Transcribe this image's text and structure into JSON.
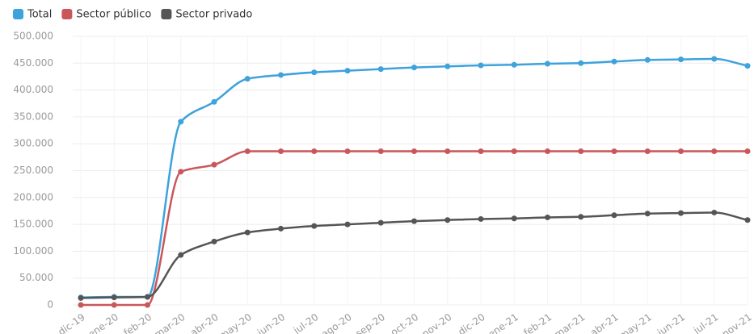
{
  "chart_data": {
    "type": "line",
    "categories": [
      "dic-19",
      "ene-20",
      "feb-20",
      "mar-20",
      "abr-20",
      "may-20",
      "jun-20",
      "jul-20",
      "ago-20",
      "sep-20",
      "oct-20",
      "nov-20",
      "dic-20",
      "ene-21",
      "feb-21",
      "mar-21",
      "abr-21",
      "may-21",
      "jun-21",
      "jul-21",
      "nov-21"
    ],
    "series": [
      {
        "name": "Total",
        "color": "#3ea2dc",
        "values": [
          14000,
          15000,
          15000,
          341000,
          378000,
          421000,
          428000,
          433000,
          436000,
          439000,
          442000,
          444000,
          446000,
          447000,
          449000,
          450000,
          453000,
          456000,
          457000,
          458000,
          445000
        ]
      },
      {
        "name": "Sector público",
        "color": "#c9575a",
        "values": [
          0,
          0,
          0,
          248000,
          261000,
          286000,
          286000,
          286000,
          286000,
          286000,
          286000,
          286000,
          286000,
          286000,
          286000,
          286000,
          286000,
          286000,
          286000,
          286000,
          286000
        ]
      },
      {
        "name": "Sector privado",
        "color": "#555555",
        "values": [
          13000,
          14000,
          15000,
          93000,
          118000,
          135000,
          142000,
          147000,
          150000,
          153000,
          156000,
          158000,
          160000,
          161000,
          163000,
          164000,
          167000,
          170000,
          171000,
          172000,
          158000
        ]
      }
    ],
    "ylim": [
      0,
      500000
    ],
    "yticks": [
      0,
      {
        "value": 50000,
        "label": "50.000"
      },
      {
        "value": 100000,
        "label": "100.000"
      },
      {
        "value": 150000,
        "label": "150.000"
      },
      {
        "value": 200000,
        "label": "200.000"
      },
      {
        "value": 250000,
        "label": "250.000"
      },
      {
        "value": 300000,
        "label": "300.000"
      },
      {
        "value": 350000,
        "label": "350.000"
      },
      {
        "value": 400000,
        "label": "400.000"
      },
      {
        "value": 450000,
        "label": "450.000"
      },
      {
        "value": 500000,
        "label": "500.000"
      }
    ],
    "grid": true,
    "legend": "top-left"
  }
}
